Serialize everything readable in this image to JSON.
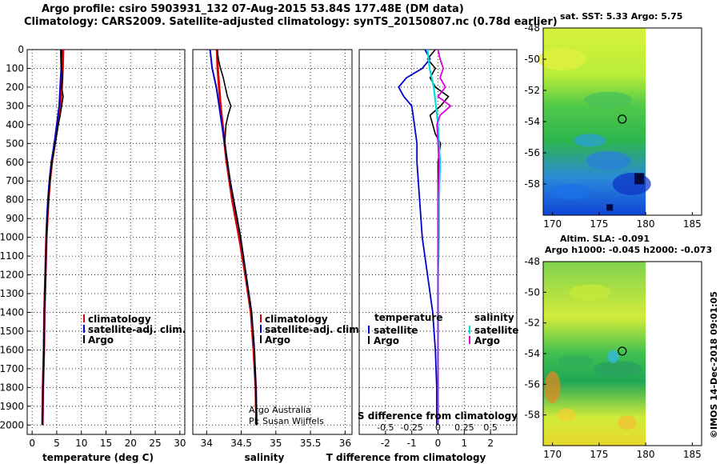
{
  "titles": {
    "line1": "Argo profile: csiro 5903931_132 07-Aug-2015 53.84S 177.48E (DM data)",
    "line2": "Climatology: CARS2009. Satellite-adjusted climatology: synTS_20150807.nc (0.78d earlier)"
  },
  "map_titles": {
    "sst": "sat. SST: 5.33 Argo: 5.75",
    "sla1": "Altim. SLA: -0.091",
    "sla2": "Argo h1000: -0.045 h2000: -0.073"
  },
  "stamp": "©IMOS 14-Dec-2018 09:01:05",
  "credits": {
    "line1": "Argo Australia",
    "line2": "PI: Susan Wijffels"
  },
  "colors": {
    "climatology": "#dd0000",
    "satellite": "#0000cc",
    "argo": "#000000",
    "sat_salinity": "#00dddd",
    "argo_salinity": "#dd00dd"
  },
  "chart_data": [
    {
      "type": "line",
      "xlabel": "temperature (deg C)",
      "ylabel": "",
      "xlim": [
        -1,
        31
      ],
      "ylim": [
        2050,
        0
      ],
      "xticks": [
        0,
        5,
        10,
        15,
        20,
        25,
        30
      ],
      "yticks": [
        0,
        100,
        200,
        300,
        400,
        500,
        600,
        700,
        800,
        900,
        1000,
        1100,
        1200,
        1300,
        1400,
        1500,
        1600,
        1700,
        1800,
        1900,
        2000
      ],
      "ytick_labels": [
        "0",
        "100",
        "200",
        "300",
        "400",
        "500",
        "600",
        "700",
        "800",
        "900",
        "1000",
        "1100",
        "1200",
        "1300",
        "1400",
        "1500",
        "1600",
        "1700",
        "1800",
        "1900",
        "2000"
      ],
      "legend": [
        "climatology",
        "satellite-adj. clim.",
        "Argo"
      ],
      "series": [
        {
          "name": "climatology",
          "depth": [
            0,
            100,
            200,
            300,
            400,
            500,
            600,
            700,
            800,
            900,
            1000,
            1200,
            1400,
            1600,
            1800,
            2000
          ],
          "values": [
            6.3,
            6.2,
            6.0,
            5.7,
            5.2,
            4.6,
            4.0,
            3.6,
            3.3,
            3.1,
            2.9,
            2.7,
            2.5,
            2.4,
            2.2,
            2.1
          ]
        },
        {
          "name": "satellite-adj. clim.",
          "depth": [
            0,
            100,
            200,
            300,
            400,
            500,
            600,
            700,
            800,
            900,
            1000,
            1200,
            1400,
            1600,
            1800,
            2000
          ],
          "values": [
            5.8,
            5.9,
            5.7,
            5.5,
            5.0,
            4.5,
            3.9,
            3.5,
            3.2,
            3.0,
            2.9,
            2.7,
            2.5,
            2.4,
            2.2,
            2.1
          ]
        },
        {
          "name": "Argo",
          "depth": [
            0,
            50,
            100,
            150,
            200,
            250,
            300,
            350,
            400,
            450,
            500,
            600,
            700,
            800,
            900,
            1000,
            1200,
            1400,
            1600,
            1800,
            2000
          ],
          "values": [
            6.0,
            5.9,
            6.0,
            6.2,
            6.0,
            6.3,
            6.0,
            5.7,
            5.3,
            5.0,
            4.7,
            4.0,
            3.6,
            3.3,
            3.1,
            2.9,
            2.7,
            2.5,
            2.4,
            2.2,
            2.1
          ]
        }
      ]
    },
    {
      "type": "line",
      "xlabel": "salinity",
      "xlim": [
        33.8,
        36.1
      ],
      "ylim": [
        2050,
        0
      ],
      "xticks": [
        34,
        34.5,
        35,
        35.5,
        36
      ],
      "xtick_labels": [
        "34",
        "34.5",
        "35",
        "35.5",
        "36"
      ],
      "legend": [
        "climatology",
        "satellite-adj. clim.",
        "Argo"
      ],
      "series": [
        {
          "name": "climatology",
          "depth": [
            0,
            100,
            200,
            300,
            400,
            500,
            600,
            700,
            800,
            900,
            1000,
            1200,
            1400,
            1600,
            1800,
            2000
          ],
          "values": [
            34.15,
            34.16,
            34.18,
            34.2,
            34.23,
            34.26,
            34.29,
            34.33,
            34.37,
            34.42,
            34.47,
            34.56,
            34.64,
            34.68,
            34.71,
            34.72
          ]
        },
        {
          "name": "satellite-adj. clim.",
          "depth": [
            0,
            100,
            200,
            300,
            400,
            500,
            600,
            700,
            800,
            900,
            1000,
            1200,
            1400,
            1600,
            1800,
            2000
          ],
          "values": [
            34.05,
            34.08,
            34.14,
            34.18,
            34.22,
            34.26,
            34.3,
            34.34,
            34.39,
            34.44,
            34.49,
            34.57,
            34.65,
            34.69,
            34.71,
            34.72
          ]
        },
        {
          "name": "Argo",
          "depth": [
            0,
            50,
            100,
            150,
            200,
            250,
            300,
            350,
            400,
            500,
            600,
            700,
            800,
            900,
            1000,
            1200,
            1400,
            1600,
            1800,
            2000
          ],
          "values": [
            34.15,
            34.17,
            34.2,
            34.24,
            34.27,
            34.3,
            34.35,
            34.31,
            34.28,
            34.26,
            34.3,
            34.34,
            34.39,
            34.44,
            34.49,
            34.57,
            34.65,
            34.69,
            34.71,
            34.72
          ]
        }
      ]
    },
    {
      "type": "line",
      "xlabel": "T difference from climatology",
      "xlabel2": "S difference from climatology",
      "xlim": [
        -3,
        3
      ],
      "ylim": [
        2050,
        0
      ],
      "xticks": [
        -2,
        -1,
        0,
        1,
        2
      ],
      "xticks2": [
        -0.5,
        -0.25,
        0,
        0.25,
        0.5
      ],
      "xtick2_labels": [
        "-0.5",
        "-0.25",
        "0",
        "0.25",
        "0.5"
      ],
      "legend_temperature_title": "temperature",
      "legend_salinity_title": "salinity",
      "legend_temperature": [
        "satellite",
        "Argo"
      ],
      "legend_salinity": [
        "satellite",
        "Argo"
      ],
      "series": [
        {
          "name": "satellite",
          "group": "temperature",
          "depth": [
            0,
            50,
            100,
            150,
            200,
            250,
            300,
            400,
            500,
            600,
            800,
            1000,
            1200,
            1400,
            1600,
            1800,
            2000
          ],
          "values": [
            -0.5,
            -0.3,
            -0.6,
            -1.2,
            -1.5,
            -1.3,
            -1.0,
            -0.9,
            -0.8,
            -0.8,
            -0.7,
            -0.6,
            -0.4,
            -0.2,
            -0.1,
            -0.05,
            -0.05
          ]
        },
        {
          "name": "Argo",
          "group": "temperature",
          "depth": [
            0,
            50,
            100,
            150,
            200,
            250,
            300,
            350,
            400,
            450,
            500,
            600,
            700,
            800,
            900,
            1000,
            1200,
            1400,
            1600,
            1800,
            2000
          ],
          "values": [
            -0.1,
            -0.4,
            -0.1,
            -0.3,
            -0.1,
            0.4,
            0.1,
            -0.3,
            -0.2,
            -0.1,
            0.1,
            0.0,
            0.0,
            0.0,
            0.0,
            0.0,
            0.0,
            0.0,
            0.0,
            0.0,
            0.0
          ]
        },
        {
          "name": "satellite",
          "group": "salinity",
          "depth": [
            0,
            100,
            200,
            300,
            400,
            500,
            600,
            800,
            1000,
            1200,
            1400,
            1600,
            1800,
            2000
          ],
          "values": [
            -0.1,
            -0.08,
            -0.04,
            -0.02,
            0.0,
            0.01,
            0.02,
            0.01,
            0.01,
            0.0,
            0.0,
            0.0,
            0.0,
            0.0
          ]
        },
        {
          "name": "Argo",
          "group": "salinity",
          "depth": [
            0,
            50,
            100,
            150,
            200,
            250,
            300,
            350,
            400,
            500,
            600,
            800,
            1000,
            1200,
            1400,
            1600,
            1800,
            2000
          ],
          "values": [
            0.0,
            0.02,
            0.05,
            0.02,
            0.07,
            0.0,
            0.12,
            0.02,
            -0.01,
            0.0,
            0.01,
            0.0,
            0.0,
            0.0,
            0.0,
            0.0,
            0.0,
            0.0
          ]
        }
      ]
    },
    {
      "type": "heatmap",
      "title": "sat. SST: 5.33 Argo: 5.75",
      "xlim": [
        169,
        186
      ],
      "ylim": [
        -60,
        -48
      ],
      "xticks": [
        170,
        175,
        180,
        185
      ],
      "yticks": [
        -48,
        -50,
        -52,
        -54,
        -56,
        -58
      ],
      "marker": {
        "lon": 177.48,
        "lat": -53.84
      }
    },
    {
      "type": "heatmap",
      "title": "Altim. SLA: -0.091",
      "subtitle": "Argo h1000: -0.045 h2000: -0.073",
      "xlim": [
        169,
        186
      ],
      "ylim": [
        -60,
        -48
      ],
      "xticks": [
        170,
        175,
        180,
        185
      ],
      "yticks": [
        -48,
        -50,
        -52,
        -54,
        -56,
        -58
      ],
      "marker": {
        "lon": 177.48,
        "lat": -53.84
      }
    }
  ]
}
